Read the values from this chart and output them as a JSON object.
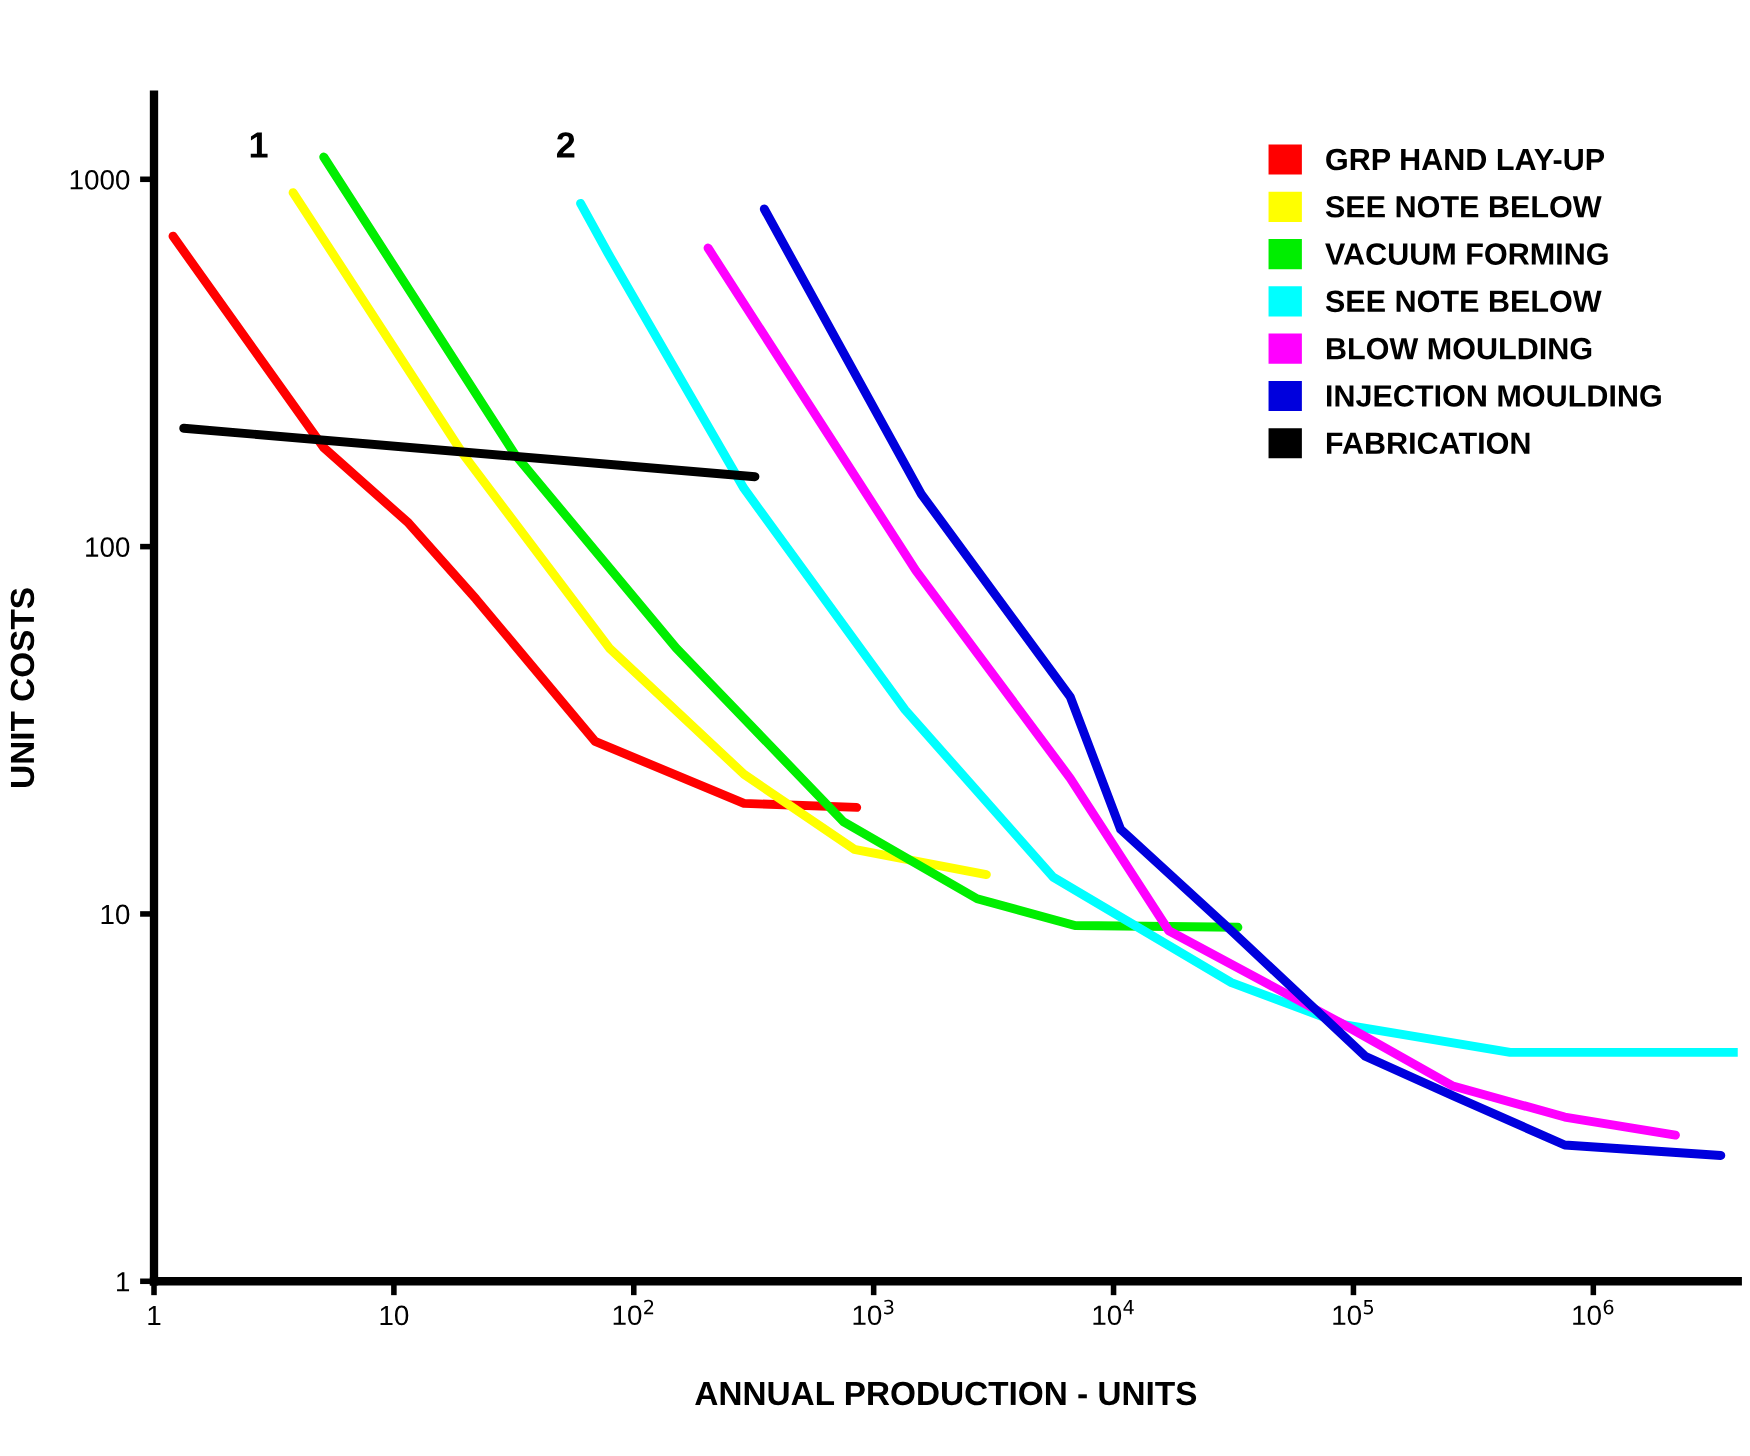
{
  "chart_data": {
    "type": "line",
    "xlabel": "ANNUAL PRODUCTION - UNITS",
    "ylabel": "UNIT COSTS",
    "log": "xy",
    "grid": false,
    "legend": "top right",
    "xlim": [
      1,
      4000000
    ],
    "ylim": [
      1,
      1700
    ],
    "xticks": [
      1,
      10,
      {
        "value": 100,
        "label": "10$^{2}$"
      },
      {
        "value": 1000,
        "label": "10$^{3}$"
      },
      {
        "value": 10000,
        "label": "10$^{4}$"
      },
      {
        "value": 100000,
        "label": "10$^{5}$"
      },
      {
        "value": 1000000,
        "label": "10$^{6}$"
      }
    ],
    "yticks": [
      1,
      10,
      100,
      1000
    ],
    "series": [
      {
        "name": "GRP HAND LAY-UP",
        "color": "#ff0000",
        "x": [
          1.2,
          5.1,
          11.5,
          22,
          69,
          288,
          850
        ],
        "values": [
          700,
          186,
          116,
          72,
          29.5,
          20,
          19.5
        ]
      },
      {
        "name": "SEE NOTE BELOW",
        "color": "#ffff00",
        "x": [
          3.8,
          19.5,
          79,
          288,
          830,
          2950
        ],
        "values": [
          920,
          178,
          53,
          24,
          15,
          12.8
        ]
      },
      {
        "name": "VACUUM FORMING",
        "color": "#00ee00",
        "x": [
          5.1,
          32,
          150,
          750,
          2700,
          6900,
          33000
        ],
        "values": [
          1150,
          178,
          53,
          17.8,
          11,
          9.3,
          9.2
        ]
      },
      {
        "name": "SEE NOTE BELOW",
        "color": "#00ffff",
        "x": [
          60,
          78,
          288,
          1350,
          5600,
          31000,
          91000,
          450000,
          4000000
        ],
        "values": [
          860,
          630,
          144,
          36,
          12.6,
          6.5,
          5.0,
          4.2,
          4.2
        ]
      },
      {
        "name": "BLOW MOULDING",
        "color": "#ff00ff",
        "x": [
          204,
          1500,
          6600,
          17000,
          91000,
          260000,
          760000,
          2200000
        ],
        "values": [
          650,
          86,
          23.4,
          9,
          5.0,
          3.4,
          2.8,
          2.5
        ]
      },
      {
        "name": "INJECTION MOULDING",
        "color": "#0000dd",
        "x": [
          350,
          1580,
          6600,
          10700,
          31000,
          112000,
          260000,
          760000,
          3400000
        ],
        "values": [
          830,
          139,
          39,
          17,
          9,
          4.1,
          3.2,
          2.35,
          2.2
        ]
      },
      {
        "name": "FABRICATION",
        "color": "#000000",
        "x": [
          1.33,
          320
        ],
        "values": [
          210,
          155
        ]
      }
    ],
    "annotations": [
      "1",
      "2"
    ]
  }
}
